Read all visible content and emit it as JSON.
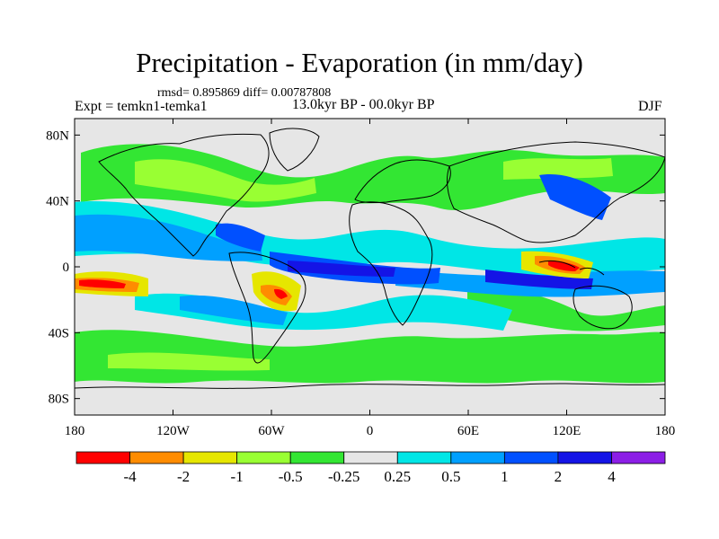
{
  "title": "Precipitation - Evaporation (in mm/day)",
  "stats": "rmsd= 0.895869 diff= 0.00787808",
  "experiment": "Expt = temkn1-temka1",
  "period": "13.0kyr BP - 00.0kyr BP",
  "season": "DJF",
  "axes": {
    "x_ticks": [
      {
        "label": "180",
        "value": -180
      },
      {
        "label": "120W",
        "value": -120
      },
      {
        "label": "60W",
        "value": -60
      },
      {
        "label": "0",
        "value": 0
      },
      {
        "label": "60E",
        "value": 60
      },
      {
        "label": "120E",
        "value": 120
      },
      {
        "label": "180",
        "value": 180
      }
    ],
    "y_ticks": [
      {
        "label": "80N",
        "value": 80
      },
      {
        "label": "40N",
        "value": 40
      },
      {
        "label": "0",
        "value": 0
      },
      {
        "label": "40S",
        "value": -40
      },
      {
        "label": "80S",
        "value": -80
      }
    ],
    "lon_range": [
      -180,
      180
    ],
    "lat_range": [
      -90,
      90
    ]
  },
  "colorbar": {
    "labels": [
      "-4",
      "-2",
      "-1",
      "-0.5",
      "-0.25",
      "0.25",
      "0.5",
      "1",
      "2",
      "4"
    ],
    "colors": [
      "#ff0000",
      "#ff8c00",
      "#e6e600",
      "#99ff33",
      "#33e633",
      "#e6e6e6",
      "#00e6e6",
      "#00a0ff",
      "#0050ff",
      "#1414e6",
      "#8c1ee6"
    ]
  },
  "map_colors": {
    "background": "#e6e6e6",
    "coastline": "#000000"
  }
}
